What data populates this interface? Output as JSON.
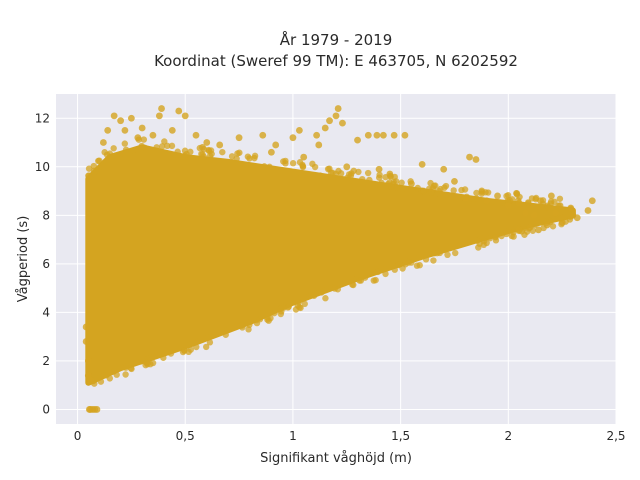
{
  "chart_data": {
    "type": "scatter",
    "title_line1": "År 1979 - 2019",
    "title_line2": "Koordinat (Sweref 99 TM): E 463705, N 6202592",
    "xlabel": "Signifikant våghöjd (m)",
    "ylabel": "Vågperiod (s)",
    "xlim": [
      -0.1,
      2.5
    ],
    "ylim": [
      -0.6,
      13
    ],
    "x_ticks": [
      {
        "value": 0,
        "label": "0"
      },
      {
        "value": 0.5,
        "label": "0,5"
      },
      {
        "value": 1,
        "label": "1"
      },
      {
        "value": 1.5,
        "label": "1,5"
      },
      {
        "value": 2,
        "label": "2"
      },
      {
        "value": 2.5,
        "label": "2,5"
      }
    ],
    "y_ticks": [
      {
        "value": 0,
        "label": "0"
      },
      {
        "value": 2,
        "label": "2"
      },
      {
        "value": 4,
        "label": "4"
      },
      {
        "value": 6,
        "label": "6"
      },
      {
        "value": 8,
        "label": "8"
      },
      {
        "value": 10,
        "label": "10"
      },
      {
        "value": 12,
        "label": "12"
      }
    ],
    "grid": true,
    "marker_color": "#d4a420",
    "plot_background": "#e9e9f1",
    "envelope": {
      "lower": [
        [
          0.05,
          1.1
        ],
        [
          0.2,
          1.7
        ],
        [
          0.5,
          2.6
        ],
        [
          0.8,
          3.6
        ],
        [
          1.0,
          4.4
        ],
        [
          1.3,
          5.4
        ],
        [
          1.6,
          6.3
        ],
        [
          1.9,
          7.1
        ],
        [
          2.1,
          7.6
        ],
        [
          2.3,
          8.0
        ]
      ],
      "upper": [
        [
          0.05,
          9.5
        ],
        [
          0.15,
          10.4
        ],
        [
          0.3,
          10.8
        ],
        [
          0.5,
          10.4
        ],
        [
          0.7,
          10.2
        ],
        [
          1.0,
          9.8
        ],
        [
          1.3,
          9.4
        ],
        [
          1.6,
          9.0
        ],
        [
          1.9,
          8.6
        ],
        [
          2.1,
          8.4
        ],
        [
          2.3,
          8.2
        ]
      ]
    },
    "points": [
      [
        0.06,
        0.0
      ],
      [
        0.07,
        0.0
      ],
      [
        0.08,
        0.0
      ],
      [
        0.09,
        0.0
      ],
      [
        0.055,
        0.0
      ],
      [
        0.04,
        2.8
      ],
      [
        0.04,
        3.4
      ],
      [
        0.05,
        1.4
      ],
      [
        0.06,
        1.2
      ],
      [
        0.05,
        2.0
      ],
      [
        0.17,
        12.1
      ],
      [
        0.2,
        11.9
      ],
      [
        0.25,
        12.0
      ],
      [
        0.3,
        11.6
      ],
      [
        0.38,
        12.1
      ],
      [
        0.39,
        12.4
      ],
      [
        0.47,
        12.3
      ],
      [
        0.5,
        12.1
      ],
      [
        0.44,
        11.5
      ],
      [
        0.14,
        11.5
      ],
      [
        0.12,
        11.0
      ],
      [
        0.35,
        11.3
      ],
      [
        0.28,
        11.2
      ],
      [
        0.22,
        11.5
      ],
      [
        0.6,
        11.0
      ],
      [
        0.58,
        10.8
      ],
      [
        0.55,
        11.3
      ],
      [
        0.66,
        10.9
      ],
      [
        0.75,
        11.2
      ],
      [
        0.86,
        11.3
      ],
      [
        0.92,
        10.9
      ],
      [
        1.0,
        11.2
      ],
      [
        1.03,
        11.5
      ],
      [
        1.11,
        11.3
      ],
      [
        1.15,
        11.6
      ],
      [
        1.17,
        11.9
      ],
      [
        1.2,
        12.1
      ],
      [
        1.21,
        12.4
      ],
      [
        1.23,
        11.8
      ],
      [
        1.35,
        11.3
      ],
      [
        1.39,
        11.3
      ],
      [
        1.42,
        11.3
      ],
      [
        1.47,
        11.3
      ],
      [
        1.52,
        11.3
      ],
      [
        1.3,
        11.1
      ],
      [
        1.12,
        10.9
      ],
      [
        0.9,
        10.6
      ],
      [
        1.05,
        10.4
      ],
      [
        1.25,
        10.0
      ],
      [
        1.45,
        9.7
      ],
      [
        1.6,
        10.1
      ],
      [
        1.7,
        9.9
      ],
      [
        1.82,
        10.4
      ],
      [
        1.85,
        10.3
      ],
      [
        1.75,
        9.4
      ],
      [
        1.55,
        9.3
      ],
      [
        1.4,
        9.9
      ],
      [
        1.65,
        9.1
      ],
      [
        1.8,
        8.7
      ],
      [
        1.9,
        8.6
      ],
      [
        1.95,
        8.8
      ],
      [
        2.0,
        8.4
      ],
      [
        2.05,
        8.5
      ],
      [
        2.08,
        8.1
      ],
      [
        2.12,
        8.0
      ],
      [
        2.15,
        8.6
      ],
      [
        2.2,
        8.8
      ],
      [
        2.24,
        8.4
      ],
      [
        2.3,
        8.0
      ],
      [
        2.32,
        7.9
      ],
      [
        2.37,
        8.2
      ],
      [
        2.39,
        8.6
      ],
      [
        2.29,
        8.3
      ],
      [
        2.22,
        8.1
      ],
      [
        2.18,
        7.6
      ],
      [
        2.1,
        7.5
      ],
      [
        2.05,
        7.4
      ],
      [
        2.14,
        7.4
      ],
      [
        2.25,
        7.7
      ]
    ]
  }
}
